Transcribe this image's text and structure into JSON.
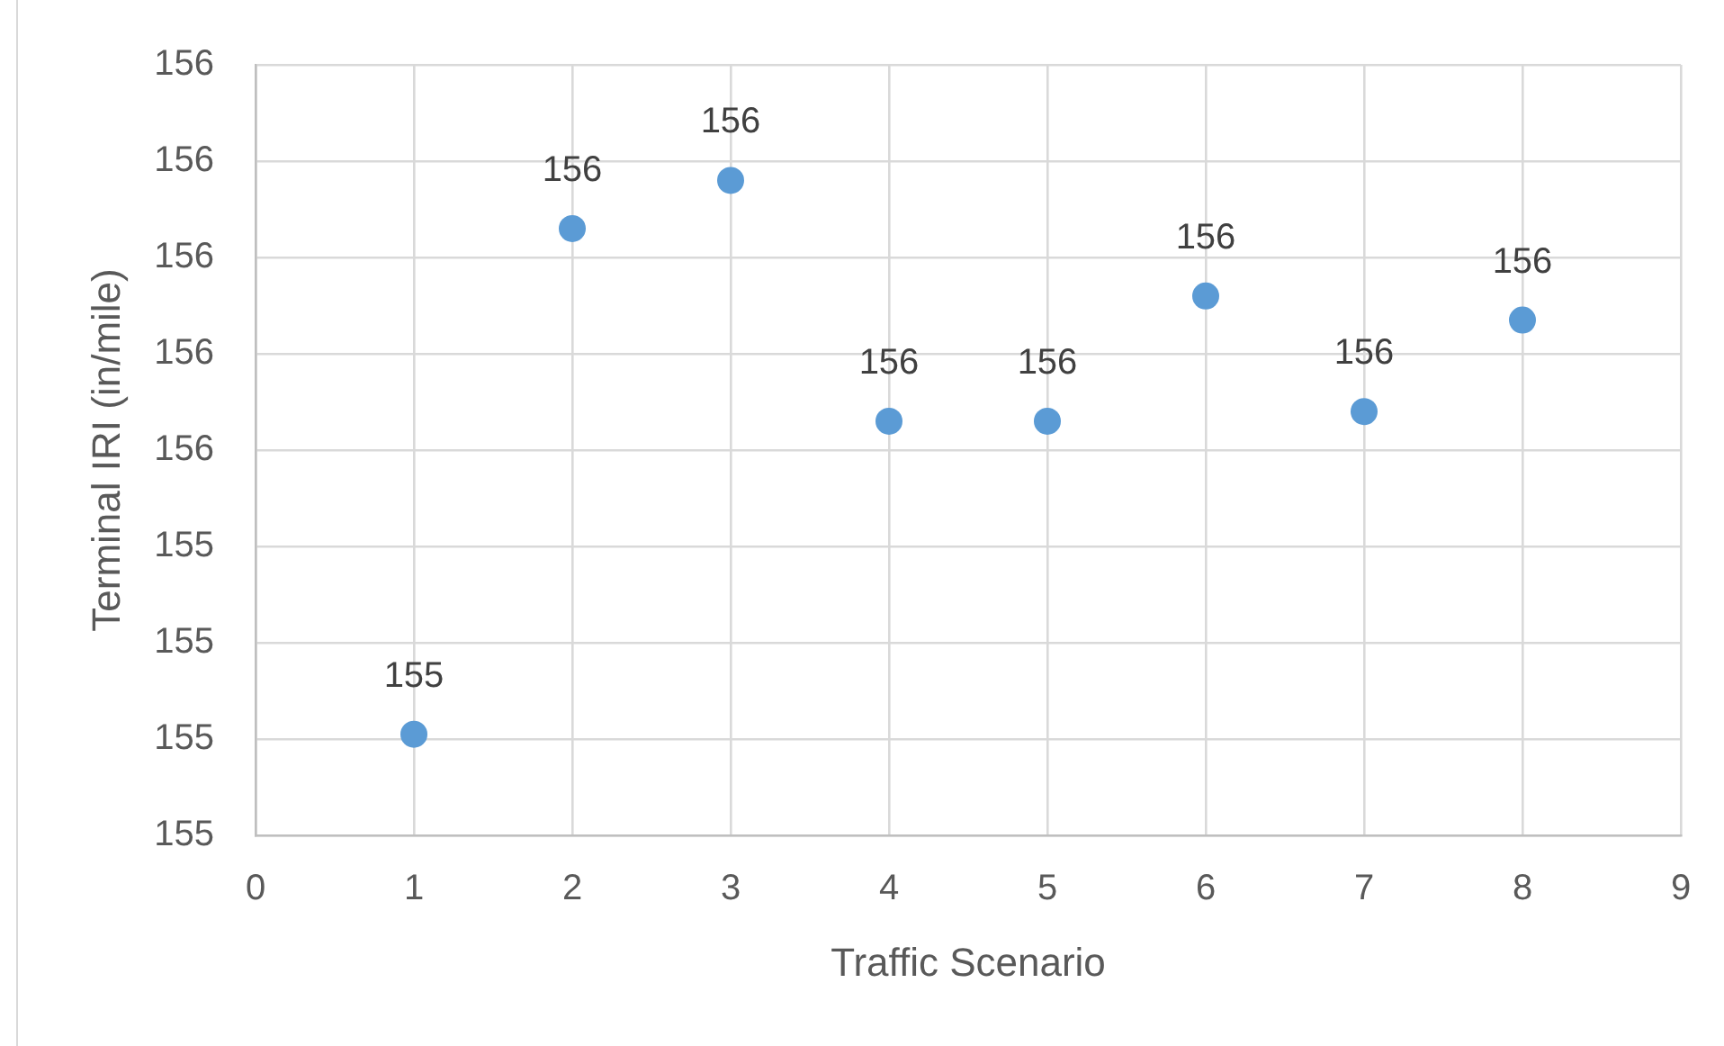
{
  "chart_data": {
    "type": "scatter",
    "xlabel": "Traffic Scenario",
    "ylabel": "Terminal IRI (in/mile)",
    "x": [
      1,
      2,
      3,
      4,
      5,
      6,
      7,
      8
    ],
    "values": [
      155.01,
      156.06,
      156.16,
      155.66,
      155.66,
      155.92,
      155.68,
      155.87
    ],
    "value_labels": [
      "155",
      "156",
      "156",
      "156",
      "156",
      "156",
      "156",
      "156"
    ],
    "color": "#5b9bd5",
    "xlim": [
      0,
      9
    ],
    "xticks": [
      0,
      1,
      2,
      3,
      4,
      5,
      6,
      7,
      8,
      9
    ],
    "ylim": [
      154.8,
      156.4
    ],
    "yticks": [
      {
        "value": 154.8,
        "label": "155"
      },
      {
        "value": 155.0,
        "label": "155"
      },
      {
        "value": 155.2,
        "label": "155"
      },
      {
        "value": 155.4,
        "label": "155"
      },
      {
        "value": 155.6,
        "label": "156"
      },
      {
        "value": 155.8,
        "label": "156"
      },
      {
        "value": 156.0,
        "label": "156"
      },
      {
        "value": 156.2,
        "label": "156"
      },
      {
        "value": 156.4,
        "label": "156"
      }
    ],
    "grid": true,
    "marker": "circle",
    "legend": false
  }
}
